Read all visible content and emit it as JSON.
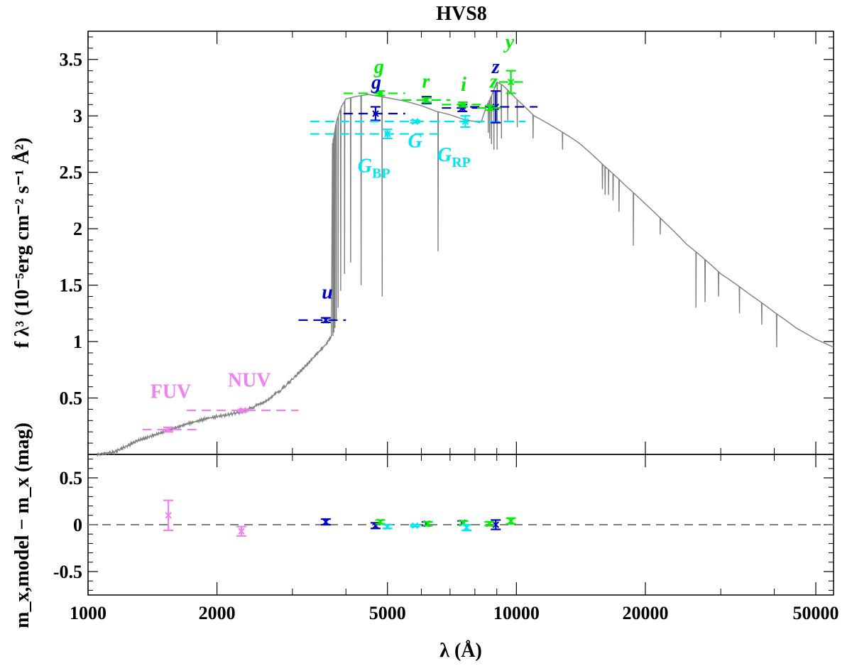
{
  "chart_data": {
    "type": "line",
    "title": "HVS8",
    "xlabel": "λ (Å)",
    "xscale": "log",
    "xlim": [
      1000,
      55000
    ],
    "x_ticks": [
      1000,
      2000,
      5000,
      10000,
      20000,
      50000
    ],
    "x_tick_labels": [
      "1000",
      "2000",
      "5000",
      "10000",
      "20000",
      "50000"
    ],
    "top_panel": {
      "ylabel": "f λ³ (10⁻⁵erg cm⁻² s⁻¹ Å²)",
      "ylim": [
        0,
        3.75
      ],
      "y_ticks": [
        0.5,
        1,
        1.5,
        2,
        2.5,
        3,
        3.5
      ],
      "y_tick_labels": [
        "0.5",
        "1",
        "1.5",
        "2",
        "2.5",
        "3",
        "3.5"
      ],
      "model_spectrum": {
        "name": "model SED",
        "color": "#808080",
        "continuum": [
          [
            1050,
            0.0
          ],
          [
            1150,
            0.02
          ],
          [
            1300,
            0.12
          ],
          [
            1500,
            0.2
          ],
          [
            1700,
            0.27
          ],
          [
            1900,
            0.32
          ],
          [
            2100,
            0.35
          ],
          [
            2300,
            0.38
          ],
          [
            2500,
            0.44
          ],
          [
            2800,
            0.56
          ],
          [
            3100,
            0.72
          ],
          [
            3400,
            0.88
          ],
          [
            3600,
            0.98
          ],
          [
            3700,
            1.05
          ],
          [
            3720,
            2.75
          ],
          [
            3800,
            2.95
          ],
          [
            3900,
            3.08
          ],
          [
            4000,
            3.15
          ],
          [
            4200,
            3.17
          ],
          [
            4500,
            3.19
          ],
          [
            5000,
            3.16
          ],
          [
            5500,
            3.13
          ],
          [
            6000,
            3.09
          ],
          [
            6500,
            3.04
          ],
          [
            7000,
            3.01
          ],
          [
            7500,
            2.97
          ],
          [
            8000,
            2.95
          ],
          [
            8200,
            2.94
          ],
          [
            8300,
            2.96
          ],
          [
            8500,
            3.08
          ],
          [
            8800,
            3.2
          ],
          [
            9000,
            3.3
          ],
          [
            9300,
            3.27
          ],
          [
            10000,
            3.15
          ],
          [
            11000,
            3.0
          ],
          [
            12000,
            2.92
          ],
          [
            13000,
            2.84
          ],
          [
            14000,
            2.76
          ],
          [
            15000,
            2.66
          ],
          [
            16000,
            2.56
          ],
          [
            17000,
            2.47
          ],
          [
            18000,
            2.38
          ],
          [
            20000,
            2.22
          ],
          [
            22000,
            2.07
          ],
          [
            25000,
            1.86
          ],
          [
            30000,
            1.6
          ],
          [
            35000,
            1.42
          ],
          [
            40000,
            1.26
          ],
          [
            45000,
            1.12
          ],
          [
            50000,
            1.02
          ],
          [
            55000,
            0.95
          ]
        ],
        "absorption_lines": [
          [
            3730,
            1.05
          ],
          [
            3750,
            1.08
          ],
          [
            3771,
            1.12
          ],
          [
            3798,
            1.2
          ],
          [
            3835,
            1.3
          ],
          [
            3889,
            1.45
          ],
          [
            3970,
            1.6
          ],
          [
            4102,
            1.7
          ],
          [
            4340,
            1.5
          ],
          [
            4861,
            1.4
          ],
          [
            6563,
            1.8
          ],
          [
            8598,
            2.85
          ],
          [
            8665,
            2.8
          ],
          [
            8750,
            2.75
          ],
          [
            8863,
            2.7
          ],
          [
            9015,
            2.7
          ],
          [
            9229,
            2.8
          ],
          [
            9546,
            2.95
          ],
          [
            10049,
            2.9
          ],
          [
            10938,
            2.8
          ],
          [
            12818,
            2.7
          ],
          [
            15880,
            2.35
          ],
          [
            16110,
            2.3
          ],
          [
            16410,
            2.3
          ],
          [
            16810,
            2.25
          ],
          [
            17360,
            2.15
          ],
          [
            18750,
            1.85
          ],
          [
            21660,
            1.95
          ],
          [
            26250,
            1.3
          ],
          [
            27570,
            1.35
          ],
          [
            29650,
            1.4
          ],
          [
            33180,
            1.25
          ],
          [
            37400,
            1.15
          ],
          [
            40520,
            0.95
          ]
        ]
      },
      "photometry": [
        {
          "filter": "FUV",
          "color": "#ee82ee",
          "x": 1540,
          "y": 0.22,
          "yerr": 0.02,
          "xlo": 1340,
          "xhi": 1800
        },
        {
          "filter": "NUV",
          "color": "#ee82ee",
          "x": 2300,
          "y": 0.39,
          "yerr": 0.01,
          "xlo": 1700,
          "xhi": 3100
        },
        {
          "filter": "u",
          "color": "#0000cd",
          "x": 3590,
          "y": 1.19,
          "yerr": 0.02,
          "xlo": 3100,
          "xhi": 4000
        },
        {
          "filter": "g",
          "color": "#0000cd",
          "x": 4690,
          "y": 3.02,
          "yerr": 0.06,
          "xlo": 3950,
          "xhi": 5500
        },
        {
          "filter": "g",
          "color": "#00ee00",
          "x": 4810,
          "y": 3.2,
          "yerr": 0.02,
          "xlo": 3950,
          "xhi": 5500
        },
        {
          "filter": "G_BP",
          "color": "#00e5ee",
          "x": 5000,
          "y": 2.84,
          "yerr": 0.04,
          "xlo": 3300,
          "xhi": 6700
        },
        {
          "filter": "G",
          "color": "#00e5ee",
          "x": 5800,
          "y": 2.95,
          "yerr": 0.01,
          "xlo": 3300,
          "xhi": 10500
        },
        {
          "filter": "r",
          "color": "#0000cd",
          "x": 6170,
          "y": 3.14,
          "yerr": 0.03,
          "xlo": 5400,
          "xhi": 7000
        },
        {
          "filter": "r",
          "color": "#00ee00",
          "x": 6180,
          "y": 3.14,
          "yerr": 0.02,
          "xlo": 5400,
          "xhi": 7000
        },
        {
          "filter": "i",
          "color": "#0000cd",
          "x": 7480,
          "y": 3.07,
          "yerr": 0.03,
          "xlo": 6700,
          "xhi": 8400
        },
        {
          "filter": "i",
          "color": "#00ee00",
          "x": 7500,
          "y": 3.1,
          "yerr": 0.02,
          "xlo": 6700,
          "xhi": 8400
        },
        {
          "filter": "G_RP",
          "color": "#00e5ee",
          "x": 7600,
          "y": 2.95,
          "yerr": 0.05,
          "xlo": 6300,
          "xhi": 10500
        },
        {
          "filter": "z",
          "color": "#0000cd",
          "x": 8950,
          "y": 3.08,
          "yerr": 0.14,
          "xlo": 7800,
          "xhi": 11200
        },
        {
          "filter": "z",
          "color": "#00ee00",
          "x": 8670,
          "y": 3.07,
          "yerr": 0.02,
          "xlo": 8100,
          "xhi": 9200
        },
        {
          "filter": "y",
          "color": "#00ee00",
          "x": 9710,
          "y": 3.3,
          "yerr": 0.1,
          "xlo": 9100,
          "xhi": 10400
        }
      ],
      "annotations": [
        {
          "text": "FUV",
          "color": "#ee82ee",
          "x": 1560,
          "y": 0.5
        },
        {
          "text": "NUV",
          "color": "#ee82ee",
          "x": 2380,
          "y": 0.6
        },
        {
          "text": "u",
          "color": "#0000cd",
          "x": 3620,
          "y": 1.38,
          "italic": true
        },
        {
          "text": "g",
          "color": "#00ee00",
          "x": 4780,
          "y": 3.38,
          "italic": true
        },
        {
          "text": "g",
          "color": "#0000cd",
          "x": 4710,
          "y": 3.24,
          "italic": true
        },
        {
          "text": "r",
          "color": "#00ee00",
          "x": 6150,
          "y": 3.25,
          "italic": true
        },
        {
          "text": "i",
          "color": "#00ee00",
          "x": 7530,
          "y": 3.22,
          "italic": true
        },
        {
          "text": "z",
          "color": "#0000cd",
          "x": 8950,
          "y": 3.38,
          "italic": true
        },
        {
          "text": "z",
          "color": "#00ee00",
          "x": 8850,
          "y": 3.25,
          "italic": true
        },
        {
          "text": "y",
          "color": "#00ee00",
          "x": 9650,
          "y": 3.6,
          "italic": true
        },
        {
          "text": "G",
          "color": "#00e5ee",
          "sub": "BP",
          "x": 4650,
          "y": 2.5
        },
        {
          "text": "G",
          "color": "#00e5ee",
          "x": 5800,
          "y": 2.72,
          "italic": true
        },
        {
          "text": "G",
          "color": "#00e5ee",
          "sub": "RP",
          "x": 7150,
          "y": 2.6
        }
      ]
    },
    "bottom_panel": {
      "ylabel": "m_x,model − m_x (mag)",
      "ylim": [
        -0.75,
        0.75
      ],
      "y_ticks": [
        -0.5,
        0,
        0.5
      ],
      "y_tick_labels": [
        "-0.5",
        "0",
        "0.5"
      ],
      "zero_line": 0,
      "residuals": [
        {
          "filter": "FUV",
          "color": "#ee82ee",
          "x": 1540,
          "y": 0.1,
          "yerr": 0.16
        },
        {
          "filter": "NUV",
          "color": "#ee82ee",
          "x": 2280,
          "y": -0.07,
          "yerr": 0.05
        },
        {
          "filter": "u",
          "color": "#0000cd",
          "x": 3590,
          "y": 0.03,
          "yerr": 0.03
        },
        {
          "filter": "g",
          "color": "#0000cd",
          "x": 4690,
          "y": -0.01,
          "yerr": 0.03
        },
        {
          "filter": "g",
          "color": "#00ee00",
          "x": 4810,
          "y": 0.03,
          "yerr": 0.02
        },
        {
          "filter": "G_BP",
          "color": "#00e5ee",
          "x": 5000,
          "y": -0.02,
          "yerr": 0.02
        },
        {
          "filter": "G",
          "color": "#00e5ee",
          "x": 5800,
          "y": -0.01,
          "yerr": 0.01
        },
        {
          "filter": "r",
          "color": "#0000cd",
          "x": 6170,
          "y": 0.01,
          "yerr": 0.02
        },
        {
          "filter": "r",
          "color": "#00ee00",
          "x": 6210,
          "y": 0.01,
          "yerr": 0.02
        },
        {
          "filter": "i",
          "color": "#0000cd",
          "x": 7480,
          "y": 0.02,
          "yerr": 0.02
        },
        {
          "filter": "i",
          "color": "#00ee00",
          "x": 7520,
          "y": 0.02,
          "yerr": 0.02
        },
        {
          "filter": "G_RP",
          "color": "#00e5ee",
          "x": 7650,
          "y": -0.03,
          "yerr": 0.03
        },
        {
          "filter": "z",
          "color": "#0000cd",
          "x": 8950,
          "y": 0.0,
          "yerr": 0.05
        },
        {
          "filter": "z",
          "color": "#00ee00",
          "x": 8650,
          "y": 0.01,
          "yerr": 0.02
        },
        {
          "filter": "y",
          "color": "#00ee00",
          "x": 9710,
          "y": 0.04,
          "yerr": 0.03
        }
      ]
    }
  }
}
